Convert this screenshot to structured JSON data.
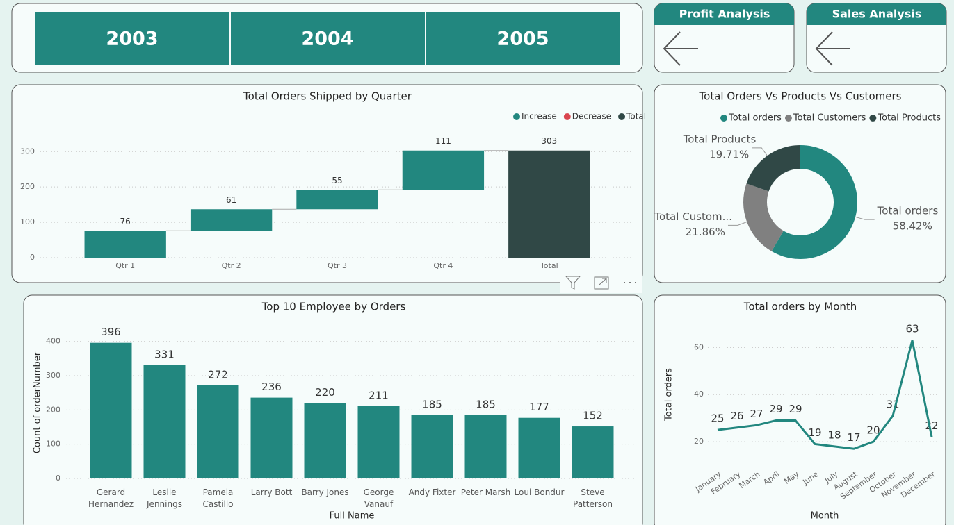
{
  "slicer": {
    "items": [
      "2003",
      "2004",
      "2005"
    ]
  },
  "buttons": [
    {
      "label": "Profit Analysis"
    },
    {
      "label": "Sales Analysis"
    }
  ],
  "chart_data": [
    {
      "type": "waterfall",
      "title": "Total Orders Shipped by Quarter",
      "categories": [
        "Qtr 1",
        "Qtr 2",
        "Qtr 3",
        "Qtr 4",
        "Total"
      ],
      "values": [
        76,
        61,
        55,
        111,
        303
      ],
      "series": [
        {
          "name": "Increase",
          "color": "#22877f"
        },
        {
          "name": "Decrease",
          "color": "#d9464f"
        },
        {
          "name": "Total",
          "color": "#304846"
        }
      ],
      "ylim": [
        0,
        330
      ],
      "yticks": [
        0,
        100,
        200,
        300
      ],
      "grid": true
    },
    {
      "type": "donut",
      "title": "Total Orders Vs Products Vs Customers",
      "categories": [
        "Total orders",
        "Total Customers",
        "Total Products"
      ],
      "slice_labels": [
        "Total orders",
        "Total Custom...",
        "Total Products"
      ],
      "values": [
        58.42,
        21.86,
        19.71
      ],
      "value_labels": [
        "58.42%",
        "21.86%",
        "19.71%"
      ],
      "colors": [
        "#22877f",
        "#808080",
        "#304846"
      ]
    },
    {
      "type": "bar",
      "title": "Top 10 Employee by Orders",
      "x_label": "Full Name",
      "y_label": "Count of orderNumber",
      "categories": [
        "Gerard Hernandez",
        "Leslie Jennings",
        "Pamela Castillo",
        "Larry Bott",
        "Barry Jones",
        "George Vanauf",
        "Andy Fixter",
        "Peter Marsh",
        "Loui Bondur",
        "Steve Patterson"
      ],
      "values": [
        396,
        331,
        272,
        236,
        220,
        211,
        185,
        185,
        177,
        152
      ],
      "color": "#22877f",
      "ylim": [
        0,
        440
      ],
      "yticks": [
        0,
        100,
        200,
        300,
        400
      ],
      "grid": true
    },
    {
      "type": "line",
      "title": "Total orders by Month",
      "x_label": "Month",
      "y_label": "Total orders",
      "categories": [
        "January",
        "February",
        "March",
        "April",
        "May",
        "June",
        "July",
        "August",
        "September",
        "October",
        "November",
        "December"
      ],
      "values": [
        25,
        26,
        27,
        29,
        29,
        19,
        18,
        17,
        20,
        31,
        63,
        22
      ],
      "color": "#22877f",
      "ylim": [
        10,
        66
      ],
      "yticks": [
        20,
        40,
        60
      ],
      "grid": true
    }
  ]
}
